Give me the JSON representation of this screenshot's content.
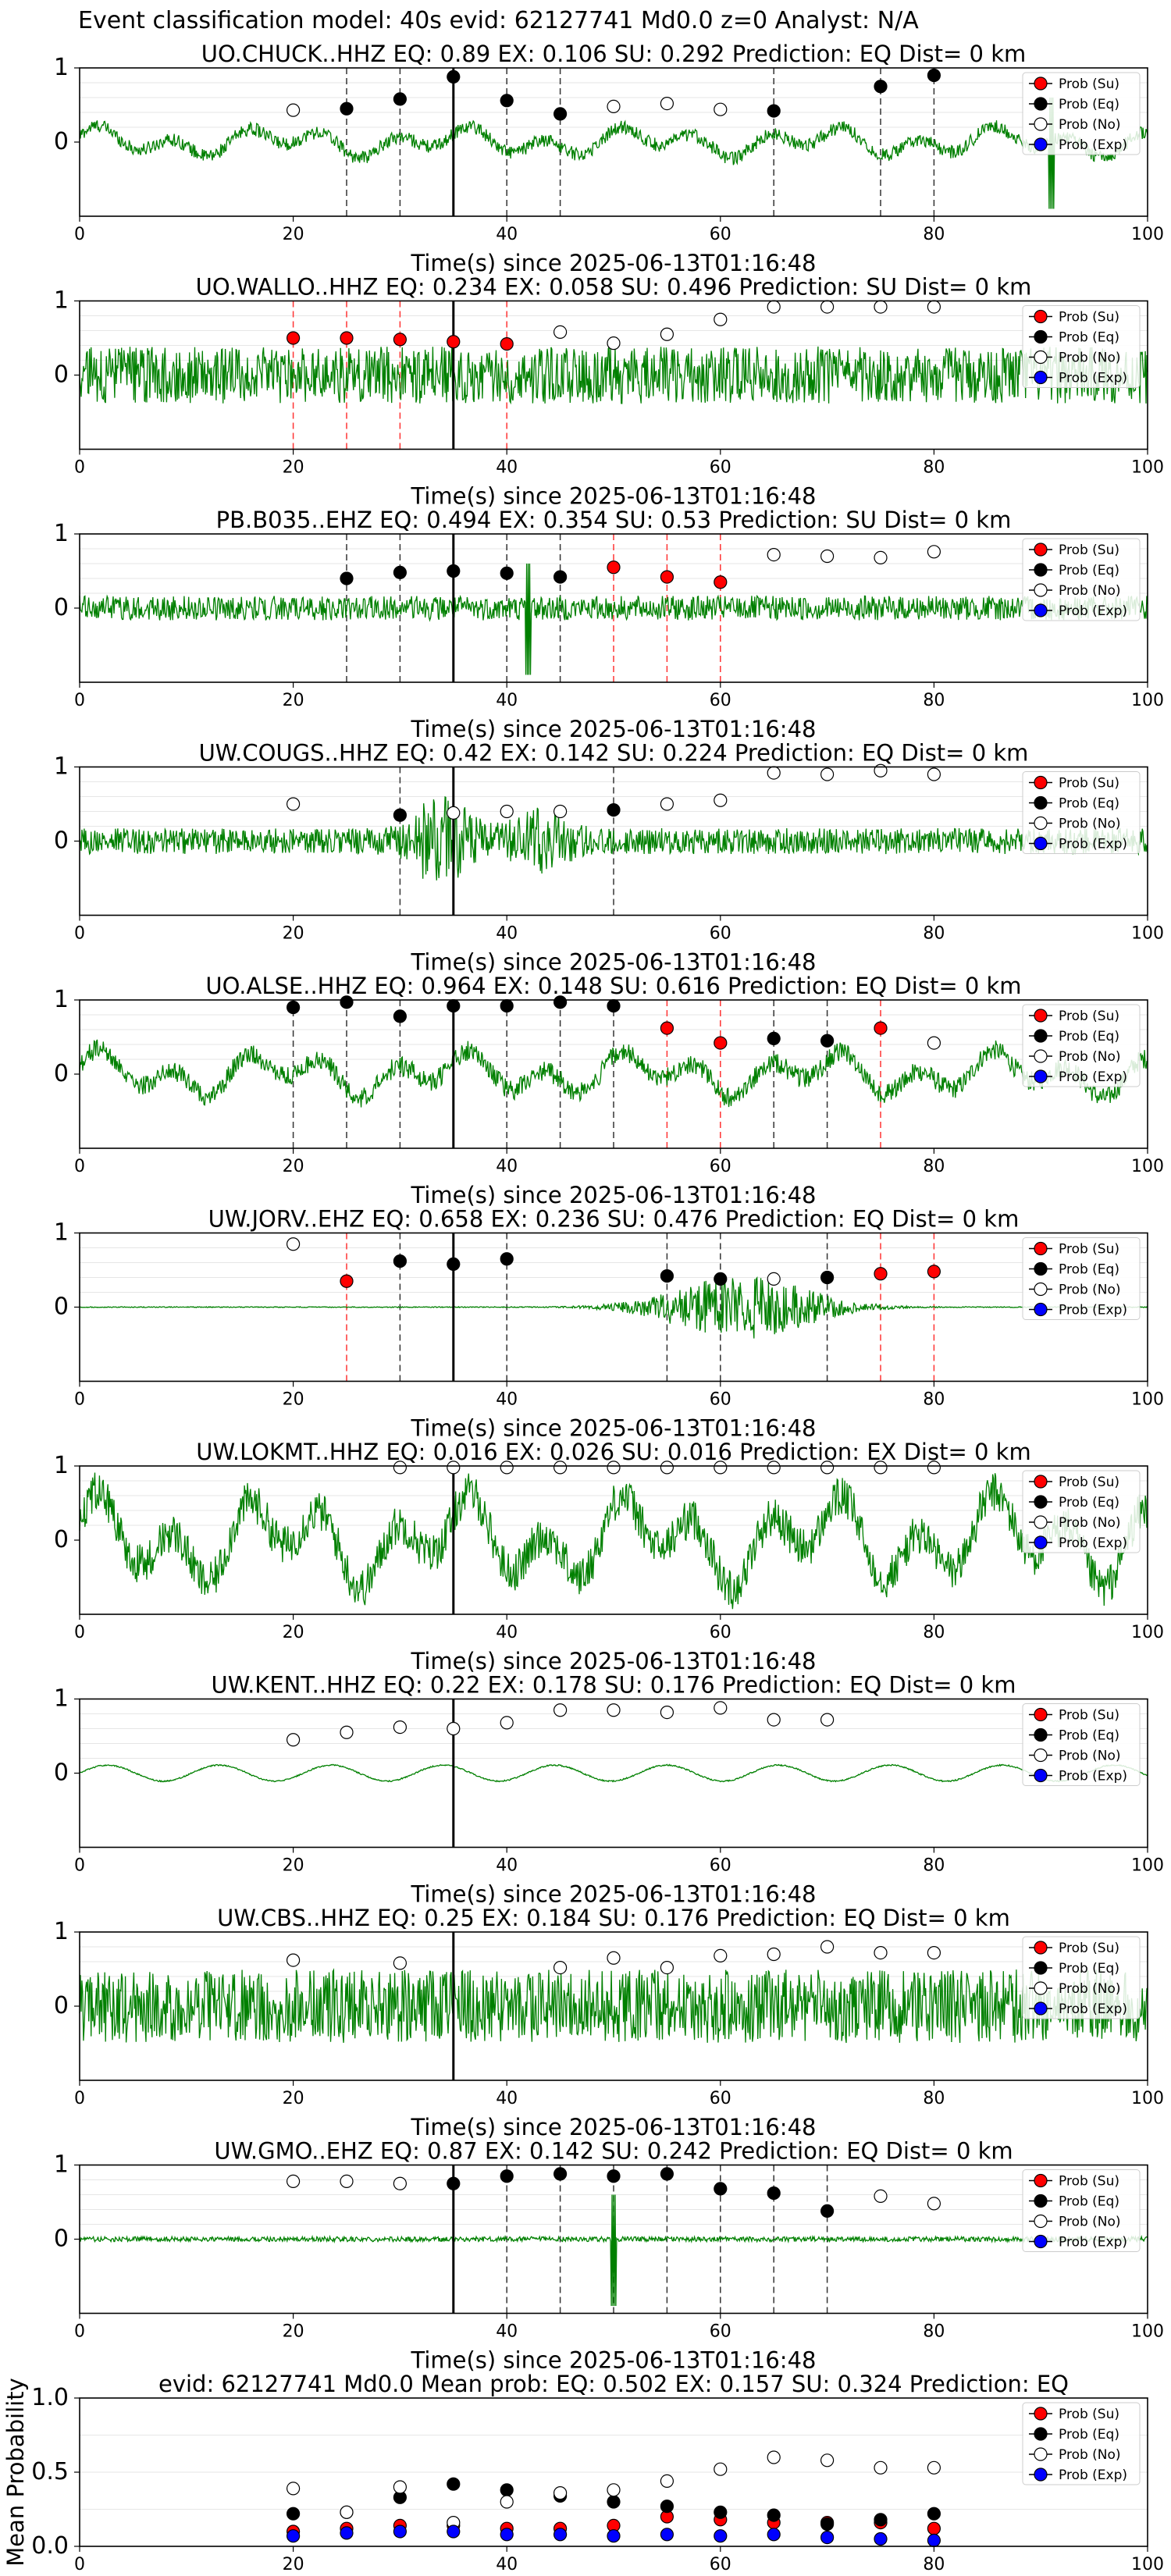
{
  "suptitle": "Event classification model: 40s evid: 62127741 Md0.0 z=0 Analyst: N/A",
  "legend_labels": [
    "Prob (Su)",
    "Prob (Eq)",
    "Prob (No)",
    "Prob (Exp)"
  ],
  "colors": {
    "su": "#ff0000",
    "eq": "#000000",
    "no": "#ffffff",
    "exp": "#0000ff",
    "waveform": "#008000",
    "edge": "#000000"
  },
  "chart_data": [
    {
      "type": "line",
      "station": "UO.CHUCK..HHZ",
      "title": "UO.CHUCK..HHZ   EQ: 0.89  EX: 0.106  SU: 0.292   Prediction: EQ    Dist= 0 km",
      "xlabel": "Time(s) since 2025-06-13T01:16:48",
      "xlim": [
        0,
        100
      ],
      "ylim": [
        -1,
        1
      ],
      "yticks": [
        "1",
        "0"
      ],
      "xticks": [
        "0",
        "20",
        "40",
        "60",
        "80",
        "100"
      ],
      "pick_time": 35,
      "waveform_amp": 0.2,
      "waveform_style": "lowfreq",
      "spike_at": 91,
      "points": [
        {
          "t": 20,
          "p": 0.43,
          "c": "no"
        },
        {
          "t": 25,
          "p": 0.45,
          "c": "eq"
        },
        {
          "t": 30,
          "p": 0.58,
          "c": "eq"
        },
        {
          "t": 35,
          "p": 0.88,
          "c": "eq"
        },
        {
          "t": 40,
          "p": 0.56,
          "c": "eq"
        },
        {
          "t": 45,
          "p": 0.38,
          "c": "eq"
        },
        {
          "t": 50,
          "p": 0.48,
          "c": "no"
        },
        {
          "t": 55,
          "p": 0.52,
          "c": "no"
        },
        {
          "t": 60,
          "p": 0.44,
          "c": "no"
        },
        {
          "t": 65,
          "p": 0.42,
          "c": "eq"
        },
        {
          "t": 75,
          "p": 0.75,
          "c": "eq"
        },
        {
          "t": 80,
          "p": 0.9,
          "c": "eq"
        }
      ]
    },
    {
      "type": "line",
      "station": "UO.WALLO..HHZ",
      "title": "UO.WALLO..HHZ   EQ: 0.234  EX: 0.058  SU: 0.496   Prediction: SU    Dist= 0 km",
      "xlabel": "Time(s) since 2025-06-13T01:16:48",
      "xlim": [
        0,
        100
      ],
      "ylim": [
        -1,
        1
      ],
      "yticks": [
        "1",
        "0"
      ],
      "xticks": [
        "0",
        "20",
        "40",
        "60",
        "80",
        "100"
      ],
      "pick_time": 35,
      "waveform_amp": 0.35,
      "waveform_style": "noisy",
      "points": [
        {
          "t": 20,
          "p": 0.5,
          "c": "su"
        },
        {
          "t": 25,
          "p": 0.5,
          "c": "su"
        },
        {
          "t": 30,
          "p": 0.48,
          "c": "su"
        },
        {
          "t": 35,
          "p": 0.45,
          "c": "su"
        },
        {
          "t": 40,
          "p": 0.42,
          "c": "su"
        },
        {
          "t": 45,
          "p": 0.58,
          "c": "no"
        },
        {
          "t": 50,
          "p": 0.43,
          "c": "no"
        },
        {
          "t": 55,
          "p": 0.55,
          "c": "no"
        },
        {
          "t": 60,
          "p": 0.75,
          "c": "no"
        },
        {
          "t": 65,
          "p": 0.92,
          "c": "no"
        },
        {
          "t": 70,
          "p": 0.92,
          "c": "no"
        },
        {
          "t": 75,
          "p": 0.92,
          "c": "no"
        },
        {
          "t": 80,
          "p": 0.92,
          "c": "no"
        }
      ]
    },
    {
      "type": "line",
      "station": "PB.B035..EHZ",
      "title": "PB.B035..EHZ   EQ: 0.494  EX: 0.354  SU: 0.53   Prediction: SU    Dist= 0 km",
      "xlabel": "Time(s) since 2025-06-13T01:16:48",
      "xlim": [
        0,
        100
      ],
      "ylim": [
        -1,
        1
      ],
      "yticks": [
        "1",
        "0"
      ],
      "xticks": [
        "0",
        "20",
        "40",
        "60",
        "80",
        "100"
      ],
      "pick_time": 35,
      "waveform_amp": 0.15,
      "waveform_style": "noisy",
      "spike_at": 42,
      "points": [
        {
          "t": 25,
          "p": 0.4,
          "c": "eq"
        },
        {
          "t": 30,
          "p": 0.48,
          "c": "eq"
        },
        {
          "t": 35,
          "p": 0.5,
          "c": "eq"
        },
        {
          "t": 40,
          "p": 0.47,
          "c": "eq"
        },
        {
          "t": 45,
          "p": 0.42,
          "c": "eq"
        },
        {
          "t": 50,
          "p": 0.55,
          "c": "su"
        },
        {
          "t": 55,
          "p": 0.42,
          "c": "su"
        },
        {
          "t": 60,
          "p": 0.35,
          "c": "su"
        },
        {
          "t": 65,
          "p": 0.72,
          "c": "no"
        },
        {
          "t": 70,
          "p": 0.7,
          "c": "no"
        },
        {
          "t": 75,
          "p": 0.68,
          "c": "no"
        },
        {
          "t": 80,
          "p": 0.76,
          "c": "no"
        }
      ]
    },
    {
      "type": "line",
      "station": "UW.COUGS..HHZ",
      "title": "UW.COUGS..HHZ   EQ: 0.42  EX: 0.142  SU: 0.224   Prediction: EQ    Dist= 0 km",
      "xlabel": "Time(s) since 2025-06-13T01:16:48",
      "xlim": [
        0,
        100
      ],
      "ylim": [
        -1,
        1
      ],
      "yticks": [
        "1",
        "0"
      ],
      "xticks": [
        "0",
        "20",
        "40",
        "60",
        "80",
        "100"
      ],
      "pick_time": 35,
      "waveform_amp": 0.35,
      "waveform_style": "burst",
      "points": [
        {
          "t": 20,
          "p": 0.5,
          "c": "no"
        },
        {
          "t": 30,
          "p": 0.35,
          "c": "eq"
        },
        {
          "t": 35,
          "p": 0.38,
          "c": "no"
        },
        {
          "t": 40,
          "p": 0.4,
          "c": "no"
        },
        {
          "t": 45,
          "p": 0.4,
          "c": "no"
        },
        {
          "t": 50,
          "p": 0.42,
          "c": "eq"
        },
        {
          "t": 55,
          "p": 0.5,
          "c": "no"
        },
        {
          "t": 60,
          "p": 0.55,
          "c": "no"
        },
        {
          "t": 65,
          "p": 0.92,
          "c": "no"
        },
        {
          "t": 70,
          "p": 0.9,
          "c": "no"
        },
        {
          "t": 75,
          "p": 0.95,
          "c": "no"
        },
        {
          "t": 80,
          "p": 0.9,
          "c": "no"
        }
      ]
    },
    {
      "type": "line",
      "station": "UO.ALSE..HHZ",
      "title": "UO.ALSE..HHZ   EQ: 0.964  EX: 0.148  SU: 0.616   Prediction: EQ    Dist= 0 km",
      "xlabel": "Time(s) since 2025-06-13T01:16:48",
      "xlim": [
        0,
        100
      ],
      "ylim": [
        -1,
        1
      ],
      "yticks": [
        "1",
        "0"
      ],
      "xticks": [
        "0",
        "20",
        "40",
        "60",
        "80",
        "100"
      ],
      "pick_time": 35,
      "waveform_amp": 0.3,
      "waveform_style": "lowfreq",
      "points": [
        {
          "t": 20,
          "p": 0.9,
          "c": "eq"
        },
        {
          "t": 25,
          "p": 0.97,
          "c": "eq"
        },
        {
          "t": 30,
          "p": 0.78,
          "c": "eq"
        },
        {
          "t": 35,
          "p": 0.92,
          "c": "eq"
        },
        {
          "t": 40,
          "p": 0.92,
          "c": "eq"
        },
        {
          "t": 45,
          "p": 0.97,
          "c": "eq"
        },
        {
          "t": 50,
          "p": 0.92,
          "c": "eq"
        },
        {
          "t": 55,
          "p": 0.62,
          "c": "su"
        },
        {
          "t": 60,
          "p": 0.42,
          "c": "su"
        },
        {
          "t": 65,
          "p": 0.48,
          "c": "eq"
        },
        {
          "t": 70,
          "p": 0.45,
          "c": "eq"
        },
        {
          "t": 75,
          "p": 0.62,
          "c": "su"
        },
        {
          "t": 80,
          "p": 0.42,
          "c": "no"
        }
      ]
    },
    {
      "type": "line",
      "station": "UW.JORV..EHZ",
      "title": "UW.JORV..EHZ   EQ: 0.658  EX: 0.236  SU: 0.476   Prediction: EQ    Dist= 0 km",
      "xlabel": "Time(s) since 2025-06-13T01:16:48",
      "xlim": [
        0,
        100
      ],
      "ylim": [
        -1,
        1
      ],
      "yticks": [
        "1",
        "0"
      ],
      "xticks": [
        "0",
        "20",
        "40",
        "60",
        "80",
        "100"
      ],
      "pick_time": 35,
      "waveform_amp": 0.02,
      "waveform_style": "quietburst",
      "points": [
        {
          "t": 20,
          "p": 0.85,
          "c": "no"
        },
        {
          "t": 25,
          "p": 0.35,
          "c": "su"
        },
        {
          "t": 30,
          "p": 0.62,
          "c": "eq"
        },
        {
          "t": 35,
          "p": 0.58,
          "c": "eq"
        },
        {
          "t": 40,
          "p": 0.65,
          "c": "eq"
        },
        {
          "t": 55,
          "p": 0.42,
          "c": "eq"
        },
        {
          "t": 60,
          "p": 0.38,
          "c": "eq"
        },
        {
          "t": 65,
          "p": 0.38,
          "c": "no"
        },
        {
          "t": 70,
          "p": 0.4,
          "c": "eq"
        },
        {
          "t": 75,
          "p": 0.45,
          "c": "su"
        },
        {
          "t": 80,
          "p": 0.48,
          "c": "su"
        }
      ]
    },
    {
      "type": "line",
      "station": "UW.LOKMT..HHZ",
      "title": "UW.LOKMT..HHZ   EQ: 0.016  EX: 0.026  SU: 0.016   Prediction: EX    Dist= 0 km",
      "xlabel": "Time(s) since 2025-06-13T01:16:48",
      "xlim": [
        0,
        100
      ],
      "ylim": [
        -1,
        1
      ],
      "yticks": [
        "1",
        "0"
      ],
      "xticks": [
        "0",
        "20",
        "40",
        "60",
        "80",
        "100"
      ],
      "pick_time": 35,
      "waveform_amp": 0.6,
      "waveform_style": "lowfreq",
      "points": [
        {
          "t": 30,
          "p": 0.98,
          "c": "no"
        },
        {
          "t": 35,
          "p": 0.98,
          "c": "no"
        },
        {
          "t": 40,
          "p": 0.98,
          "c": "no"
        },
        {
          "t": 45,
          "p": 0.98,
          "c": "no"
        },
        {
          "t": 50,
          "p": 0.98,
          "c": "no"
        },
        {
          "t": 55,
          "p": 0.98,
          "c": "no"
        },
        {
          "t": 60,
          "p": 0.98,
          "c": "no"
        },
        {
          "t": 65,
          "p": 0.98,
          "c": "no"
        },
        {
          "t": 70,
          "p": 0.98,
          "c": "no"
        },
        {
          "t": 75,
          "p": 0.98,
          "c": "no"
        },
        {
          "t": 80,
          "p": 0.98,
          "c": "no"
        }
      ]
    },
    {
      "type": "line",
      "station": "UW.KENT..HHZ",
      "title": "UW.KENT..HHZ   EQ: 0.22  EX: 0.178  SU: 0.176   Prediction: EQ    Dist= 0 km",
      "xlabel": "Time(s) since 2025-06-13T01:16:48",
      "xlim": [
        0,
        100
      ],
      "ylim": [
        -1,
        1
      ],
      "yticks": [
        "1",
        "0"
      ],
      "xticks": [
        "0",
        "20",
        "40",
        "60",
        "80",
        "100"
      ],
      "pick_time": 35,
      "waveform_amp": 0.12,
      "waveform_style": "smooth",
      "points": [
        {
          "t": 20,
          "p": 0.45,
          "c": "no"
        },
        {
          "t": 25,
          "p": 0.55,
          "c": "no"
        },
        {
          "t": 30,
          "p": 0.62,
          "c": "no"
        },
        {
          "t": 35,
          "p": 0.6,
          "c": "no"
        },
        {
          "t": 40,
          "p": 0.68,
          "c": "no"
        },
        {
          "t": 45,
          "p": 0.85,
          "c": "no"
        },
        {
          "t": 50,
          "p": 0.85,
          "c": "no"
        },
        {
          "t": 55,
          "p": 0.82,
          "c": "no"
        },
        {
          "t": 60,
          "p": 0.88,
          "c": "no"
        },
        {
          "t": 65,
          "p": 0.72,
          "c": "no"
        },
        {
          "t": 70,
          "p": 0.72,
          "c": "no"
        }
      ]
    },
    {
      "type": "line",
      "station": "UW.CBS..HHZ",
      "title": "UW.CBS..HHZ   EQ: 0.25  EX: 0.184  SU: 0.176   Prediction: EQ    Dist= 0 km",
      "xlabel": "Time(s) since 2025-06-13T01:16:48",
      "xlim": [
        0,
        100
      ],
      "ylim": [
        -1,
        1
      ],
      "yticks": [
        "1",
        "0"
      ],
      "xticks": [
        "0",
        "20",
        "40",
        "60",
        "80",
        "100"
      ],
      "pick_time": 35,
      "waveform_amp": 0.45,
      "waveform_style": "noisy",
      "points": [
        {
          "t": 20,
          "p": 0.62,
          "c": "no"
        },
        {
          "t": 30,
          "p": 0.58,
          "c": "no"
        },
        {
          "t": 45,
          "p": 0.52,
          "c": "no"
        },
        {
          "t": 50,
          "p": 0.65,
          "c": "no"
        },
        {
          "t": 55,
          "p": 0.52,
          "c": "no"
        },
        {
          "t": 60,
          "p": 0.68,
          "c": "no"
        },
        {
          "t": 65,
          "p": 0.7,
          "c": "no"
        },
        {
          "t": 70,
          "p": 0.8,
          "c": "no"
        },
        {
          "t": 75,
          "p": 0.72,
          "c": "no"
        },
        {
          "t": 80,
          "p": 0.72,
          "c": "no"
        }
      ]
    },
    {
      "type": "line",
      "station": "UW.GMO..EHZ",
      "title": "UW.GMO..EHZ   EQ: 0.87  EX: 0.142  SU: 0.242   Prediction: EQ    Dist= 0 km",
      "xlabel": "Time(s) since 2025-06-13T01:16:48",
      "xlim": [
        0,
        100
      ],
      "ylim": [
        -1,
        1
      ],
      "yticks": [
        "1",
        "0"
      ],
      "xticks": [
        "0",
        "20",
        "40",
        "60",
        "80",
        "100"
      ],
      "pick_time": 35,
      "waveform_amp": 0.03,
      "waveform_style": "noisy",
      "spike_at": 50,
      "points": [
        {
          "t": 20,
          "p": 0.78,
          "c": "no"
        },
        {
          "t": 25,
          "p": 0.78,
          "c": "no"
        },
        {
          "t": 30,
          "p": 0.75,
          "c": "no"
        },
        {
          "t": 35,
          "p": 0.75,
          "c": "eq"
        },
        {
          "t": 40,
          "p": 0.85,
          "c": "eq"
        },
        {
          "t": 45,
          "p": 0.88,
          "c": "eq"
        },
        {
          "t": 50,
          "p": 0.85,
          "c": "eq"
        },
        {
          "t": 55,
          "p": 0.88,
          "c": "eq"
        },
        {
          "t": 60,
          "p": 0.68,
          "c": "eq"
        },
        {
          "t": 65,
          "p": 0.62,
          "c": "eq"
        },
        {
          "t": 70,
          "p": 0.38,
          "c": "eq"
        },
        {
          "t": 75,
          "p": 0.58,
          "c": "no"
        },
        {
          "t": 80,
          "p": 0.48,
          "c": "no"
        }
      ]
    },
    {
      "type": "scatter",
      "title": "evid: 62127741   Md0.0   Mean prob:   EQ: 0.502  EX: 0.157  SU: 0.324   Prediction: EQ",
      "ylabel": "Mean Probability",
      "xlim": [
        0,
        100
      ],
      "ylim": [
        0,
        1
      ],
      "yticks": [
        "1.0",
        "0.5",
        "0.0"
      ],
      "xticks": [
        "0",
        "20",
        "40",
        "60",
        "80",
        "100"
      ],
      "x": [
        20,
        25,
        30,
        35,
        40,
        45,
        50,
        55,
        60,
        65,
        70,
        75,
        80
      ],
      "series": [
        {
          "name": "Prob (Su)",
          "key": "su",
          "values": [
            0.1,
            0.12,
            0.14,
            0.14,
            0.12,
            0.12,
            0.14,
            0.2,
            0.18,
            0.16,
            0.16,
            0.16,
            0.12
          ]
        },
        {
          "name": "Prob (Eq)",
          "key": "eq",
          "values": [
            0.22,
            0.23,
            0.33,
            0.42,
            0.38,
            0.34,
            0.3,
            0.27,
            0.23,
            0.21,
            0.15,
            0.18,
            0.22
          ]
        },
        {
          "name": "Prob (No)",
          "key": "no",
          "values": [
            0.39,
            0.23,
            0.4,
            0.16,
            0.3,
            0.36,
            0.38,
            0.44,
            0.52,
            0.6,
            0.58,
            0.53,
            0.53
          ]
        },
        {
          "name": "Prob (Exp)",
          "key": "exp",
          "values": [
            0.07,
            0.09,
            0.1,
            0.1,
            0.08,
            0.08,
            0.07,
            0.08,
            0.07,
            0.08,
            0.06,
            0.05,
            0.04
          ]
        }
      ]
    }
  ]
}
